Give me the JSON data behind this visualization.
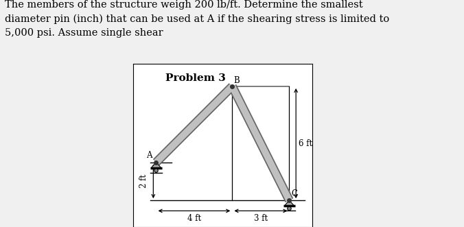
{
  "title": "Problem 3",
  "problem_text": "The members of the structure weigh 200 lb/ft. Determine the smallest\ndiameter pin (inch) that can be used at A if the shearing stress is limited to\n5,000 psi. Assume single shear",
  "bg_color": "#e8e8e8",
  "diagram_bg": "#f0f0f0",
  "member_color": "#c0c0c0",
  "member_lw": 7,
  "outline_color": "#666666",
  "points": {
    "A": [
      0,
      2
    ],
    "B": [
      4,
      6
    ],
    "C": [
      7,
      0
    ],
    "Bright": [
      7,
      6
    ]
  },
  "label_fontsize": 8.5,
  "title_fontsize": 11,
  "text_fontsize": 10.5
}
